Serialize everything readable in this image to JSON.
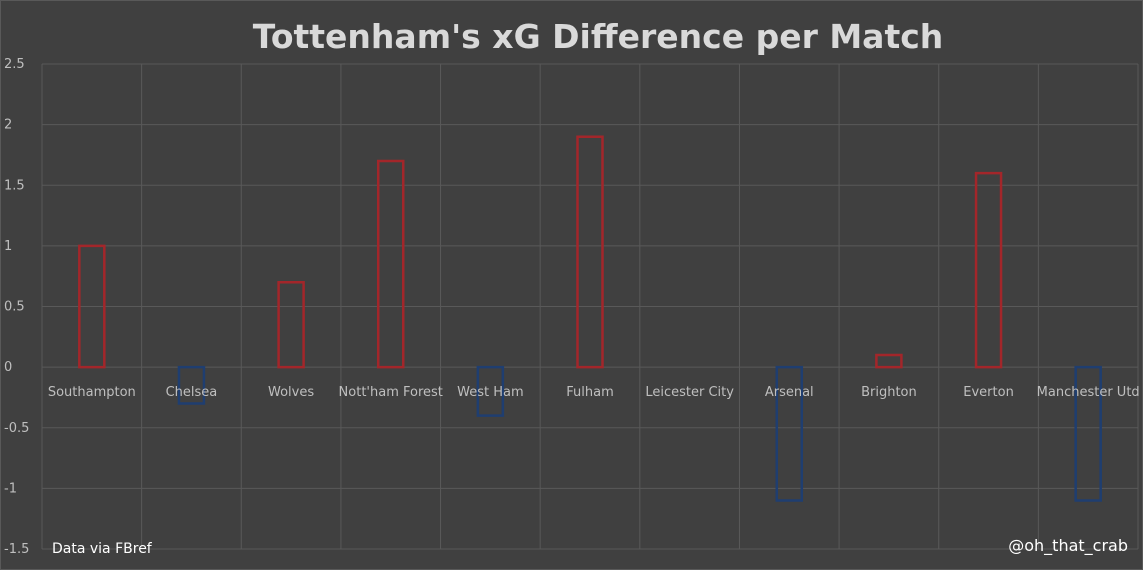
{
  "chart_data": {
    "type": "bar",
    "title": "Tottenham's xG Difference per Match",
    "categories": [
      "Southampton",
      "Chelsea",
      "Wolves",
      "Nott'ham Forest",
      "West Ham",
      "Fulham",
      "Leicester City",
      "Arsenal",
      "Brighton",
      "Everton",
      "Manchester Utd"
    ],
    "values": [
      1.0,
      -0.3,
      0.7,
      1.7,
      -0.4,
      1.9,
      0.0,
      -1.1,
      0.1,
      1.6,
      -1.1
    ],
    "ylim": [
      -1.5,
      2.5
    ],
    "yticks": [
      "2.5",
      "2",
      "1.5",
      "1",
      "0.5",
      "0",
      "-0.5",
      "-1",
      "-1.5"
    ],
    "xlabel": "",
    "ylabel": "",
    "grid": true,
    "colors": {
      "positive": "#a3262a",
      "negative": "#1f3e70",
      "background": "#404040",
      "grid": "#595959"
    }
  },
  "footer": {
    "source": "Data via FBref",
    "handle": "@oh_that_crab"
  }
}
